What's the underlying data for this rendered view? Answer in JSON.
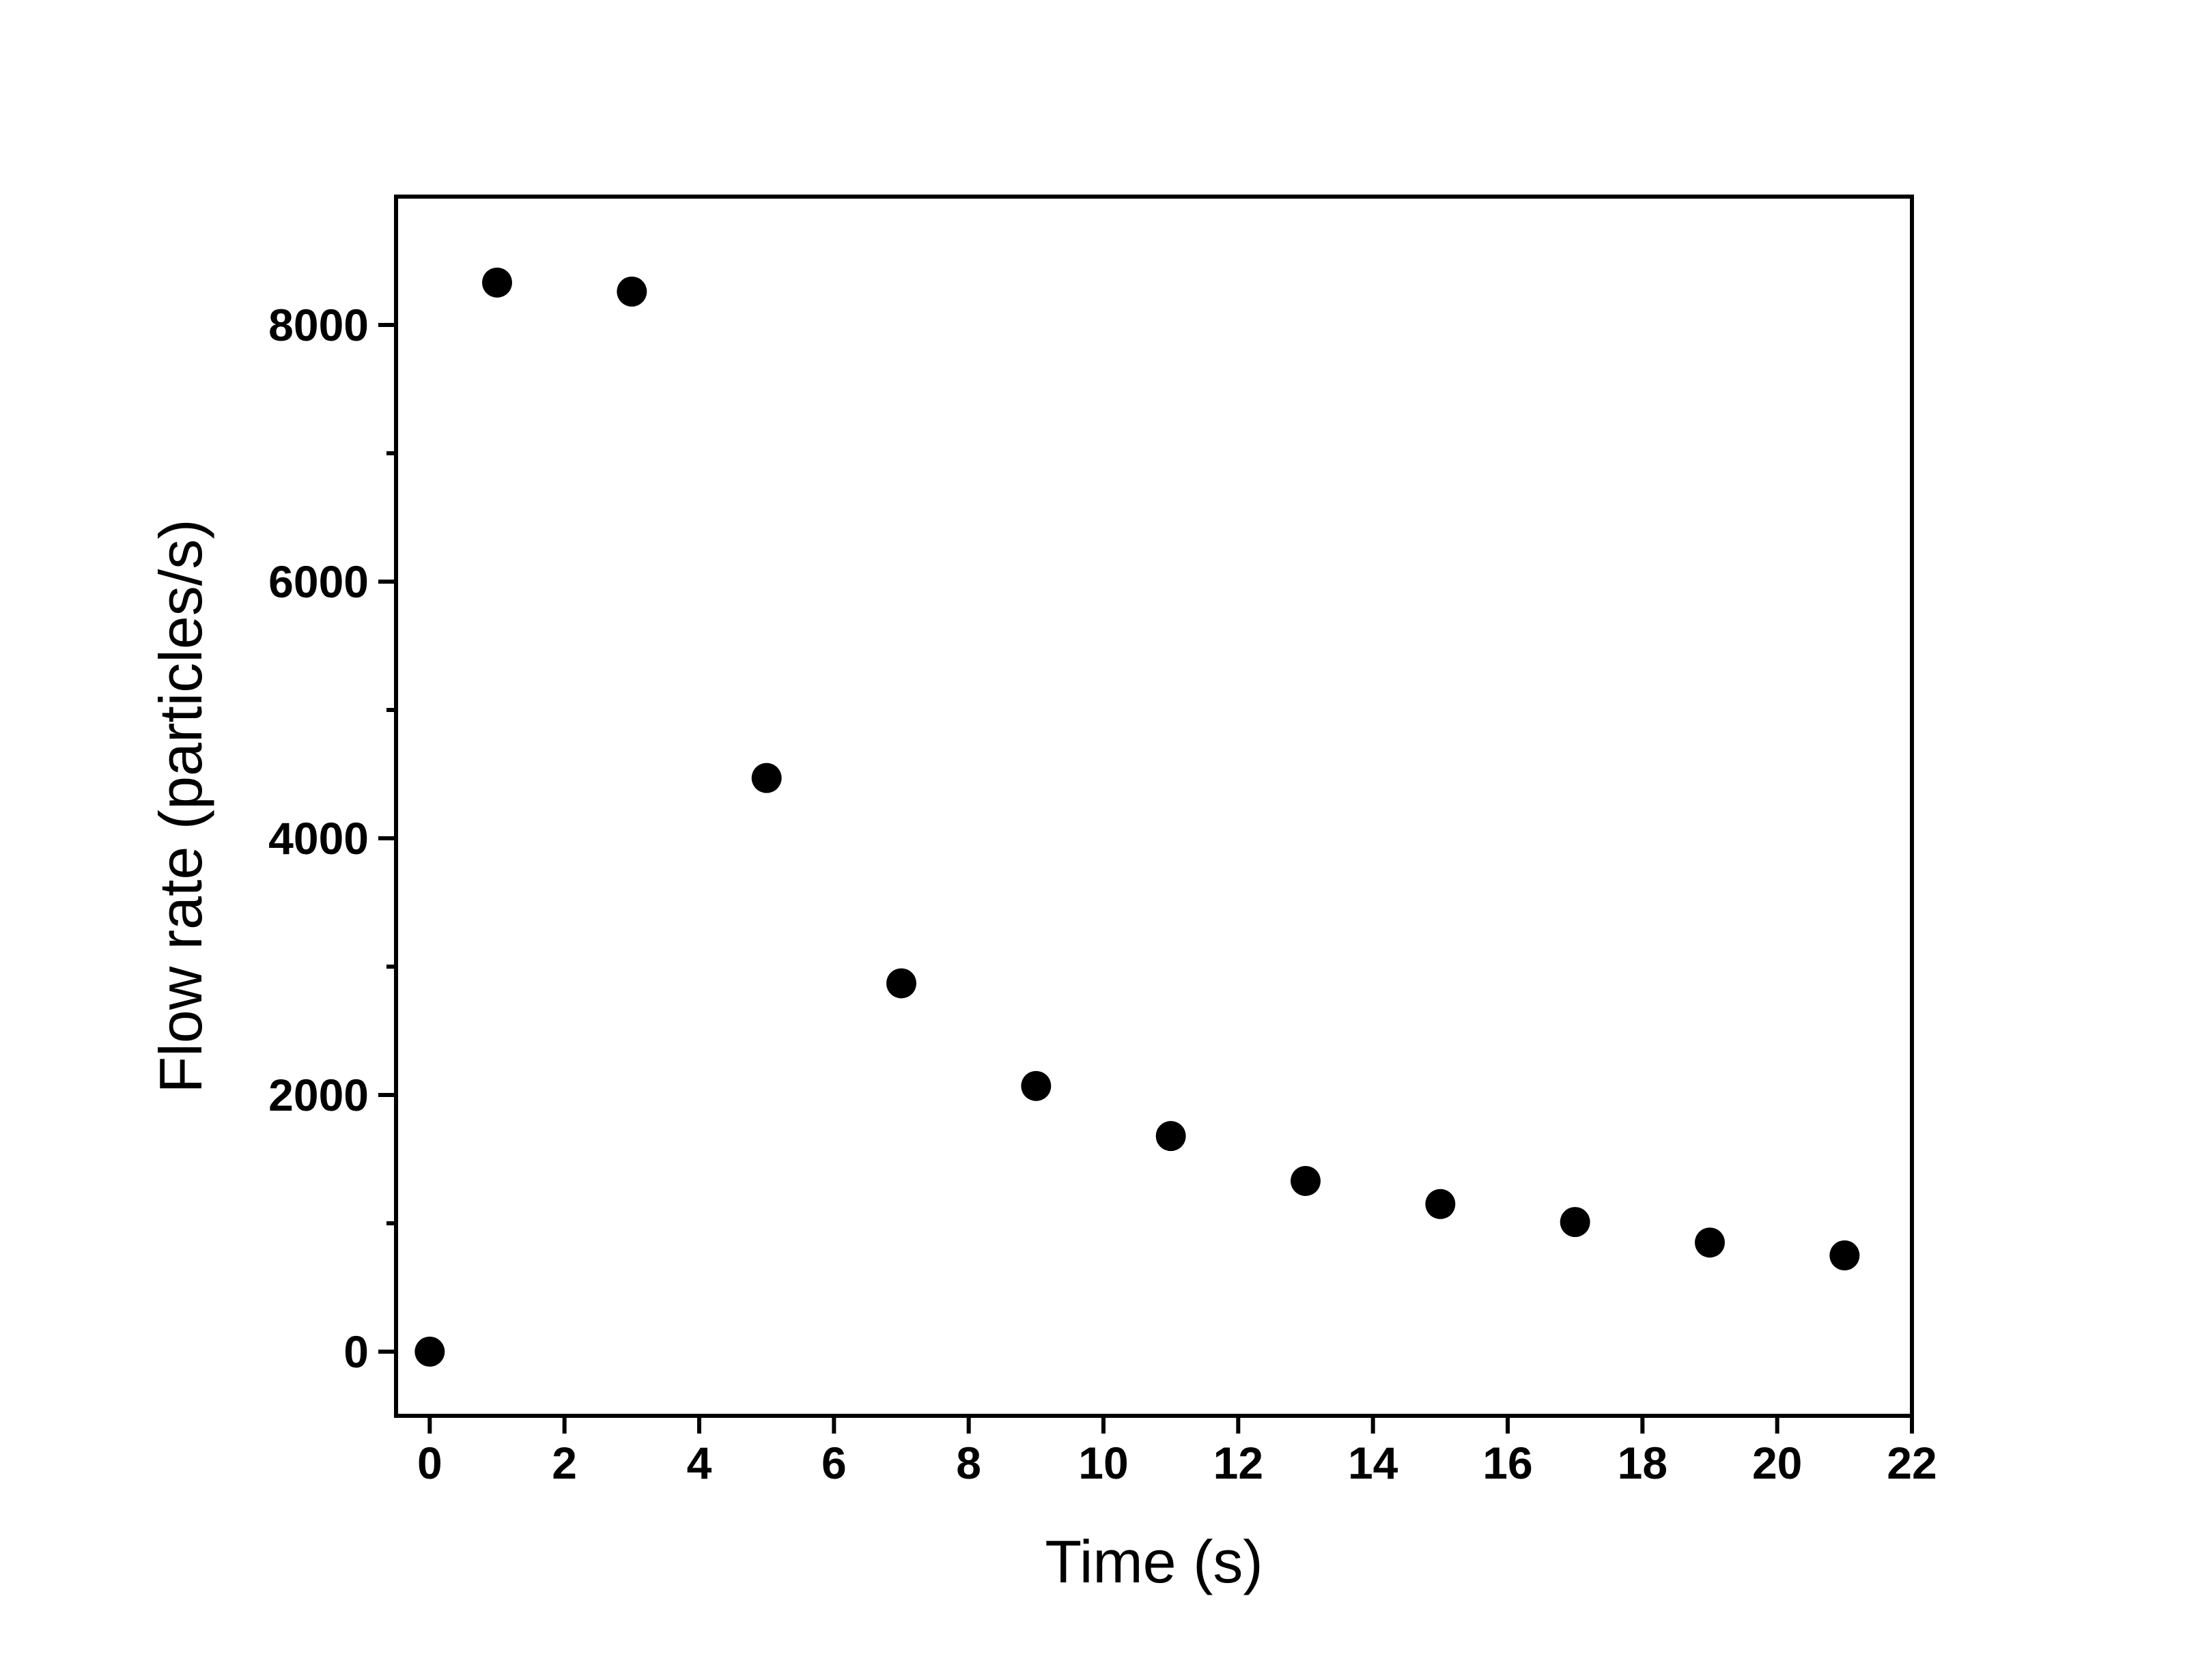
{
  "chart_data": {
    "type": "scatter",
    "title": "",
    "xlabel": "Time (s)",
    "ylabel": "Flow rate (particles/s)",
    "xlim": [
      -0.5,
      22
    ],
    "ylim": [
      -500,
      9000
    ],
    "xticks": [
      0,
      2,
      4,
      6,
      8,
      10,
      12,
      14,
      16,
      18,
      20,
      22
    ],
    "xtick_labels": [
      "0",
      "2",
      "4",
      "6",
      "8",
      "10",
      "12",
      "14",
      "16",
      "18",
      "20",
      "22"
    ],
    "yticks": [
      0,
      2000,
      4000,
      6000,
      8000
    ],
    "ytick_labels": [
      "0",
      "2000",
      "4000",
      "6000",
      "8000"
    ],
    "y_minor_ticks": [
      1000,
      3000,
      5000,
      7000
    ],
    "grid": false,
    "legend": "none",
    "marker_color": "#000000",
    "series": [
      {
        "x": [
          0,
          1,
          3,
          5,
          7,
          9,
          11,
          13,
          15,
          17,
          19,
          21
        ],
        "y": [
          0,
          8330,
          8260,
          4470,
          2870,
          2070,
          1680,
          1330,
          1150,
          1010,
          850,
          750
        ]
      }
    ]
  }
}
